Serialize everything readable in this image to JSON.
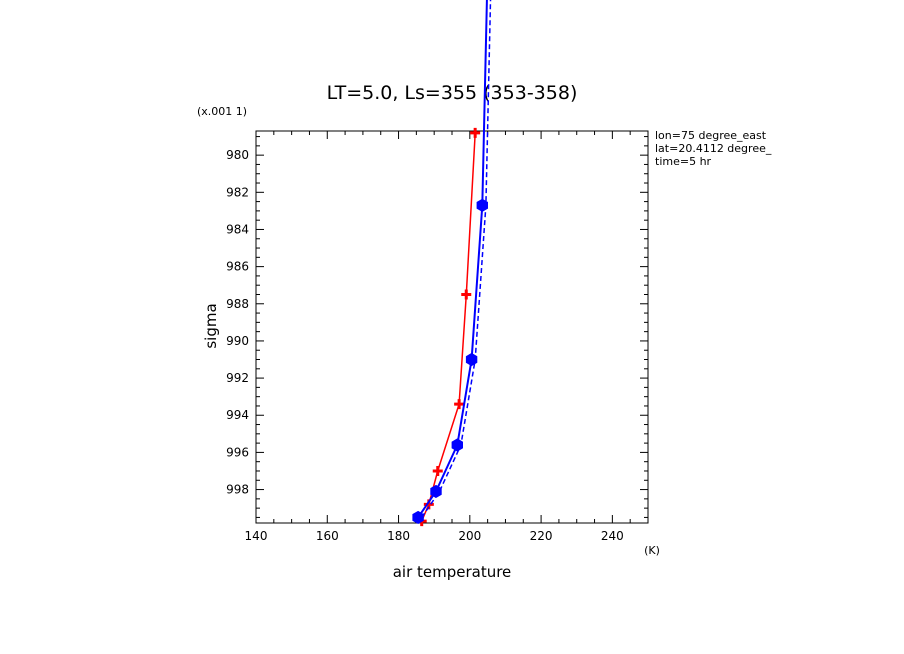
{
  "chart_data": {
    "type": "line",
    "title": "LT=5.0, Ls=355 (353-358)",
    "xlabel": "air temperature",
    "xunit": "(K)",
    "ylabel": "sigma",
    "yscale_label": "(x.001 1)",
    "xlim": [
      140,
      250
    ],
    "ylim": [
      999.8,
      978.7
    ],
    "y_inverted": true,
    "xticks": [
      "140",
      "160",
      "180",
      "200",
      "220",
      "240"
    ],
    "yticks": [
      "980",
      "982",
      "984",
      "986",
      "988",
      "990",
      "992",
      "994",
      "996",
      "998"
    ],
    "annotations": [
      "lon=75 degree_east",
      "lat=20.4112 degree_",
      "time=5 hr"
    ],
    "grid": false,
    "series": [
      {
        "color": "#ff0000",
        "style": "solid",
        "marker": "plus",
        "x": [
          186.5,
          188.5,
          191.0,
          197.0,
          199.0,
          201.5
        ],
        "y": [
          999.7,
          998.8,
          997.0,
          993.4,
          987.5,
          978.8
        ]
      },
      {
        "color": "#0000ff",
        "style": "solid",
        "marker": "hexagon",
        "x": [
          185.5,
          190.5,
          196.5,
          200.5,
          203.5,
          205.0
        ],
        "y": [
          999.5,
          998.1,
          995.6,
          991.0,
          982.7,
          970.0
        ]
      },
      {
        "color": "#0000ff",
        "style": "dashed",
        "marker": "none",
        "x": [
          186.5,
          191.5,
          197.5,
          201.5,
          204.5,
          206.0
        ],
        "y": [
          999.5,
          998.1,
          995.6,
          991.0,
          982.7,
          970.0
        ]
      }
    ]
  }
}
